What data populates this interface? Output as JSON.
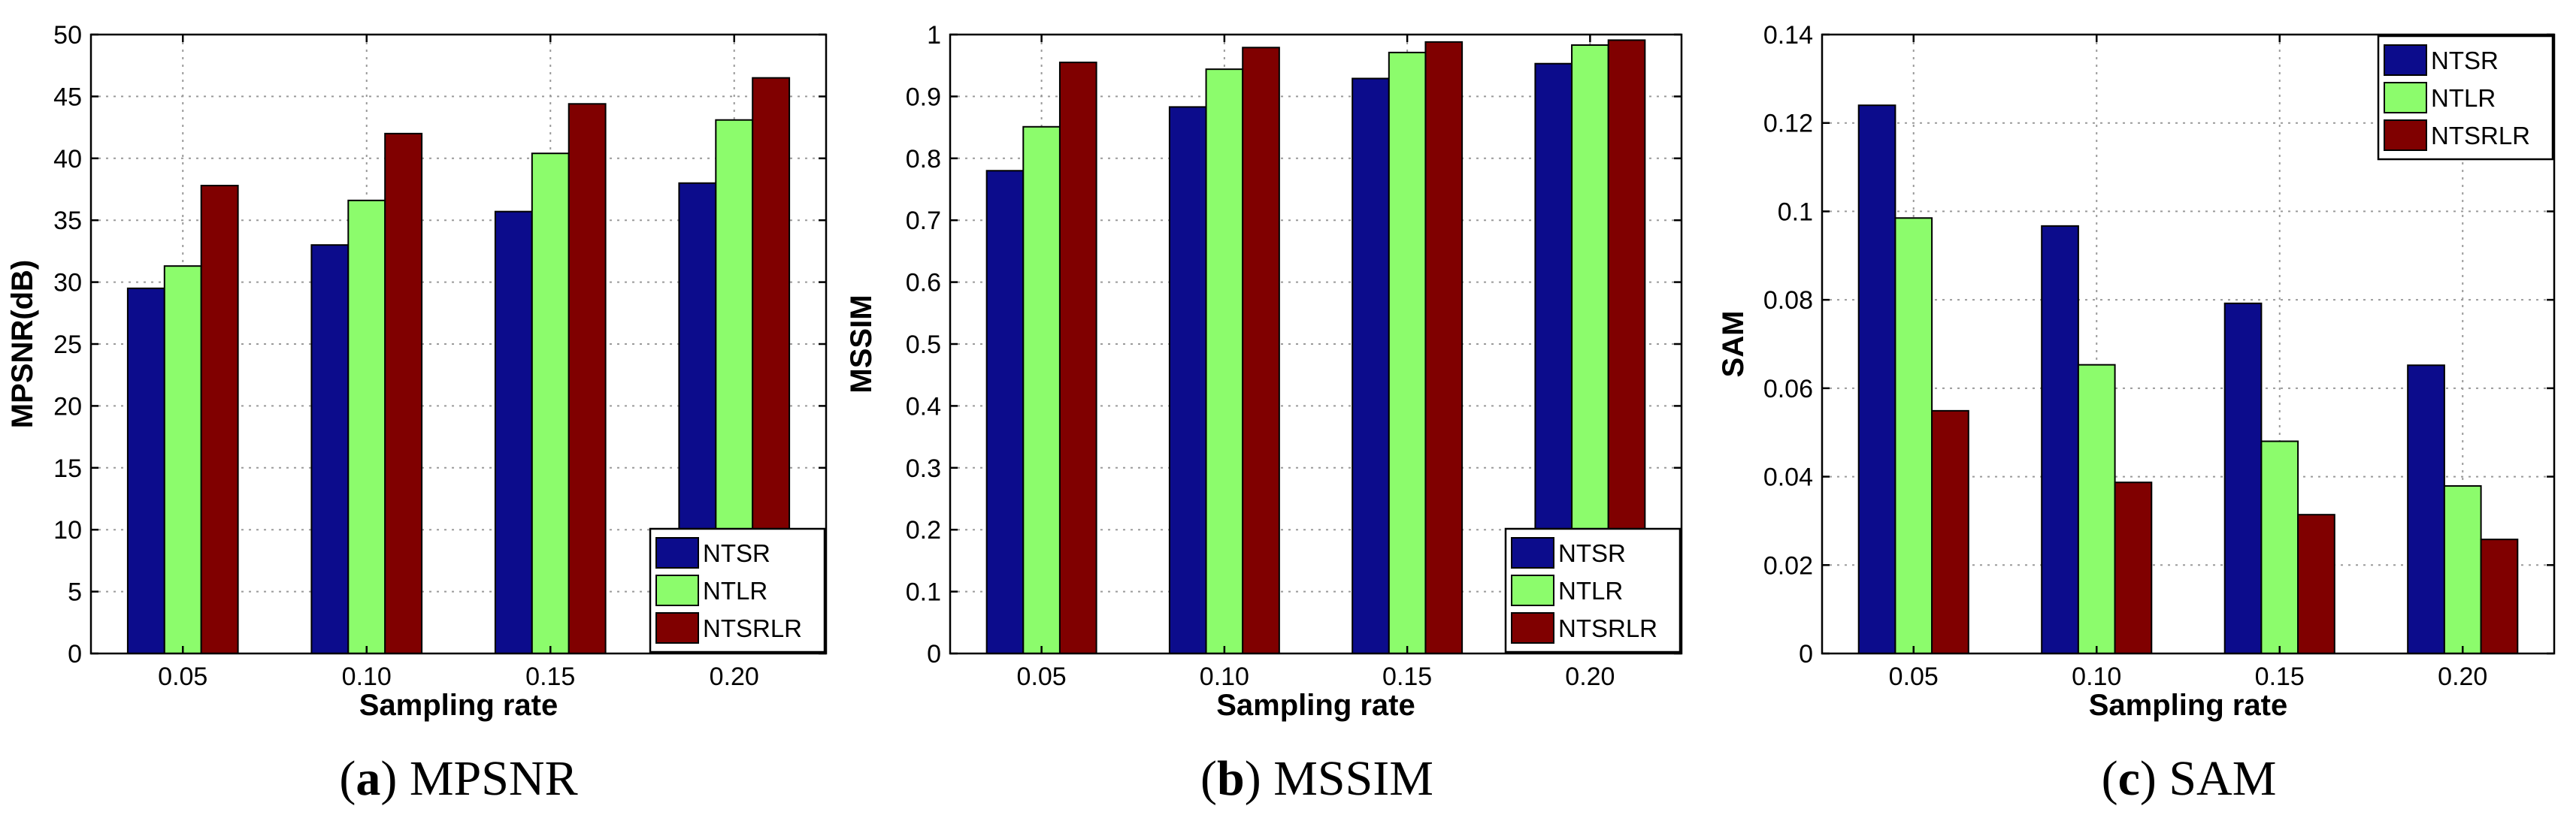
{
  "series_colors": {
    "NTSR": "#0c0c8c",
    "NTLR": "#8cfc6c",
    "NTSRLR": "#800000"
  },
  "chart_data": [
    {
      "type": "bar",
      "id": "a",
      "caption": {
        "letter": "a",
        "text": "MPSNR"
      },
      "xlabel": "Sampling rate",
      "ylabel": "MPSNR(dB)",
      "categories": [
        "0.05",
        "0.10",
        "0.15",
        "0.20"
      ],
      "ylim": [
        0,
        50
      ],
      "yticks": [
        0,
        5,
        10,
        15,
        20,
        25,
        30,
        35,
        40,
        45,
        50
      ],
      "ytick_labels": [
        "0",
        "5",
        "10",
        "15",
        "20",
        "25",
        "30",
        "35",
        "40",
        "45",
        "50"
      ],
      "grid": true,
      "legend_position": "bottom-right",
      "series": [
        {
          "name": "NTSR",
          "values": [
            29.5,
            33.0,
            35.7,
            38.0
          ]
        },
        {
          "name": "NTLR",
          "values": [
            31.3,
            36.6,
            40.4,
            43.1
          ]
        },
        {
          "name": "NTSRLR",
          "values": [
            37.8,
            42.0,
            44.4,
            46.5
          ]
        }
      ]
    },
    {
      "type": "bar",
      "id": "b",
      "caption": {
        "letter": "b",
        "text": "MSSIM"
      },
      "xlabel": "Sampling rate",
      "ylabel": "MSSIM",
      "categories": [
        "0.05",
        "0.10",
        "0.15",
        "0.20"
      ],
      "ylim": [
        0,
        1
      ],
      "yticks": [
        0,
        0.1,
        0.2,
        0.3,
        0.4,
        0.5,
        0.6,
        0.7,
        0.8,
        0.9,
        1
      ],
      "ytick_labels": [
        "0",
        "0.1",
        "0.2",
        "0.3",
        "0.4",
        "0.5",
        "0.6",
        "0.7",
        "0.8",
        "0.9",
        "1"
      ],
      "grid": true,
      "legend_position": "bottom-right",
      "series": [
        {
          "name": "NTSR",
          "values": [
            0.78,
            0.883,
            0.929,
            0.953
          ]
        },
        {
          "name": "NTLR",
          "values": [
            0.851,
            0.944,
            0.971,
            0.983
          ]
        },
        {
          "name": "NTSRLR",
          "values": [
            0.955,
            0.979,
            0.988,
            0.991
          ]
        }
      ]
    },
    {
      "type": "bar",
      "id": "c",
      "caption": {
        "letter": "c",
        "text": "SAM"
      },
      "xlabel": "Sampling rate",
      "ylabel": "SAM",
      "categories": [
        "0.05",
        "0.10",
        "0.15",
        "0.20"
      ],
      "ylim": [
        0,
        0.14
      ],
      "yticks": [
        0,
        0.02,
        0.04,
        0.06,
        0.08,
        0.1,
        0.12,
        0.14
      ],
      "ytick_labels": [
        "0",
        "0.02",
        "0.04",
        "0.06",
        "0.08",
        "0.1",
        "0.12",
        "0.14"
      ],
      "grid": true,
      "legend_position": "top-right",
      "series": [
        {
          "name": "NTSR",
          "values": [
            0.124,
            0.0967,
            0.0792,
            0.0652
          ]
        },
        {
          "name": "NTLR",
          "values": [
            0.0985,
            0.0653,
            0.048,
            0.0379
          ]
        },
        {
          "name": "NTSRLR",
          "values": [
            0.0549,
            0.0387,
            0.0314,
            0.0258
          ]
        }
      ]
    }
  ]
}
